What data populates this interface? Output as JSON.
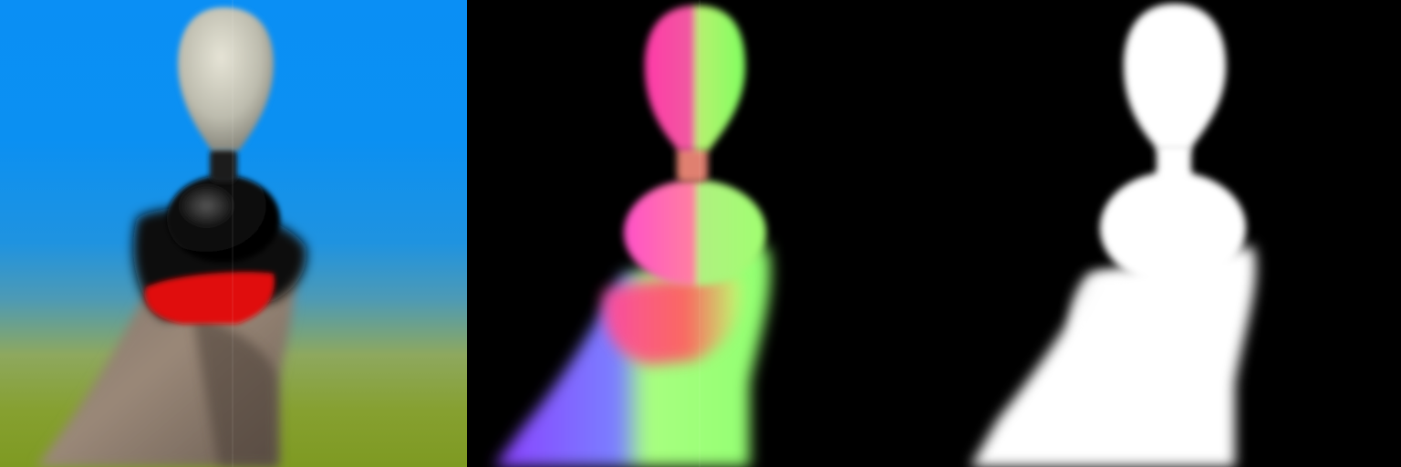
{
  "figure": {
    "panels": [
      {
        "kind": "rgb-render"
      },
      {
        "kind": "normal-map"
      },
      {
        "kind": "alpha-mask"
      }
    ],
    "colors": {
      "sky": "#0a8ff5",
      "ground": "#86a030",
      "head": "#cfcdbf",
      "neck": "#1a1a1a",
      "ball": "#0c0c0c",
      "scarf": "#e01010",
      "cloth": "#8a7a6e",
      "mask": "#ffffff",
      "normal_left": "#ff40c0",
      "normal_right": "#90ff70",
      "normal_lower": "#7a60ff"
    }
  }
}
